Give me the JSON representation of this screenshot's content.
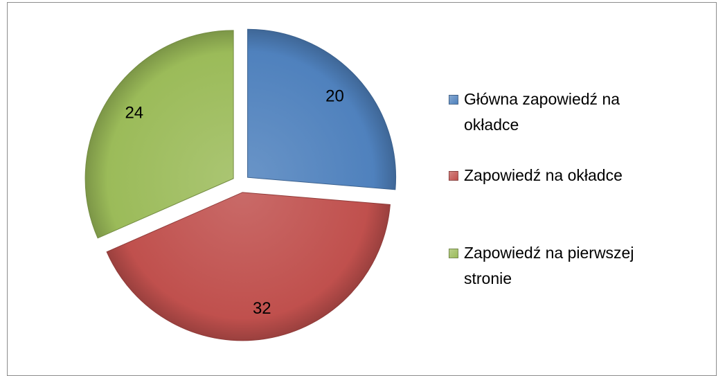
{
  "chart_data": {
    "type": "pie",
    "categories": [
      "Główna zapowiedź na okładce",
      "Zapowiedź na okładce",
      "Zapowiedź na pierwszej stronie"
    ],
    "values": [
      20,
      32,
      24
    ],
    "colors": [
      "#4f81bd",
      "#c0504d",
      "#9bbb59"
    ],
    "legend": "right"
  }
}
